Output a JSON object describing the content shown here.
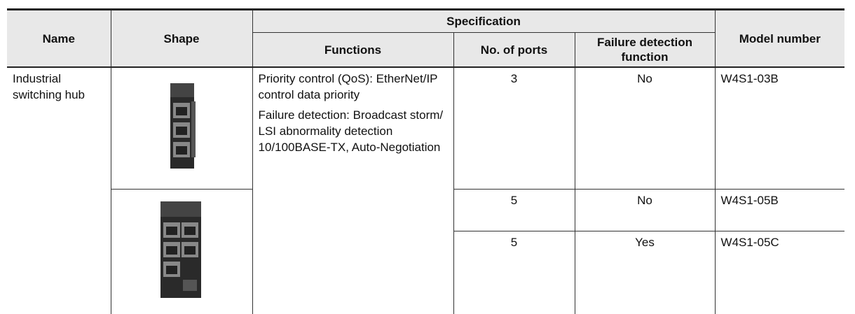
{
  "table": {
    "header": {
      "name": "Name",
      "shape": "Shape",
      "specification": "Specification",
      "functions": "Functions",
      "ports": "No. of ports",
      "failure_detection": "Failure detection function",
      "model_number": "Model number"
    },
    "name": "Industrial switching hub",
    "functions": [
      "Priority control (QoS): EtherNet/IP control data priority",
      "Failure detection: Broadcast storm/ LSI abnormality detection 10/100BASE-TX, Auto-Negotiation"
    ],
    "rows": [
      {
        "ports": 3,
        "failure_detection": "No",
        "model_number": "W4S1-03B"
      },
      {
        "ports": 5,
        "failure_detection": "No",
        "model_number": "W4S1-05B"
      },
      {
        "ports": 5,
        "failure_detection": "Yes",
        "model_number": "W4S1-05C"
      }
    ]
  }
}
